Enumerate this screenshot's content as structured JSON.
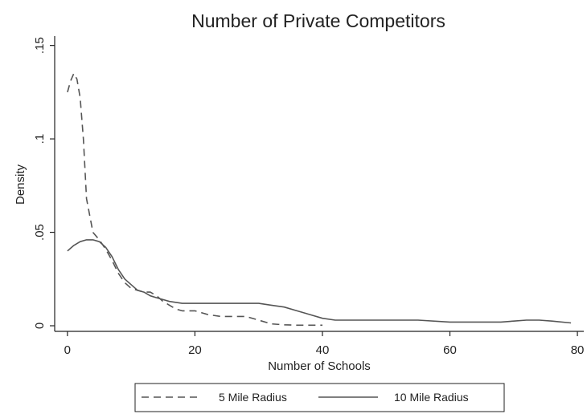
{
  "chart_data": {
    "type": "line",
    "title": "Number of Private Competitors",
    "xlabel": "Number of Schools",
    "ylabel": "Density",
    "xlim": [
      -2,
      81
    ],
    "ylim": [
      -0.003,
      0.155
    ],
    "x_ticks": [
      0,
      20,
      40,
      60,
      80
    ],
    "x_tick_labels": [
      "0",
      "20",
      "40",
      "60",
      "80"
    ],
    "y_ticks": [
      0,
      0.05,
      0.1,
      0.15
    ],
    "y_tick_labels": [
      "0",
      ".05",
      ".1",
      ".15"
    ],
    "grid": false,
    "legend_position": "bottom",
    "series": [
      {
        "name": "5 Mile Radius",
        "style": "dashed",
        "color": "#555555",
        "x": [
          0,
          0.5,
          1,
          1.5,
          2,
          2.5,
          3,
          4,
          5,
          6,
          7,
          8,
          9,
          10,
          11,
          12,
          13,
          14,
          15,
          16,
          17,
          18,
          20,
          22,
          24,
          26,
          28,
          30,
          32,
          34,
          36,
          38,
          40
        ],
        "y": [
          0.125,
          0.131,
          0.135,
          0.132,
          0.122,
          0.1,
          0.068,
          0.05,
          0.046,
          0.041,
          0.035,
          0.028,
          0.023,
          0.02,
          0.019,
          0.018,
          0.018,
          0.016,
          0.013,
          0.011,
          0.009,
          0.008,
          0.008,
          0.006,
          0.005,
          0.005,
          0.005,
          0.003,
          0.001,
          0.0005,
          0.0003,
          0.0003,
          0.0003
        ]
      },
      {
        "name": "10 Mile Radius",
        "style": "solid",
        "color": "#555555",
        "x": [
          0,
          1,
          2,
          3,
          4,
          5,
          6,
          7,
          8,
          9,
          10,
          11,
          12,
          13,
          14,
          15,
          16,
          18,
          20,
          22,
          24,
          26,
          28,
          30,
          32,
          34,
          36,
          38,
          40,
          42,
          45,
          50,
          55,
          60,
          65,
          68,
          70,
          72,
          74,
          76,
          79
        ],
        "y": [
          0.04,
          0.043,
          0.045,
          0.046,
          0.046,
          0.045,
          0.042,
          0.037,
          0.03,
          0.025,
          0.022,
          0.019,
          0.018,
          0.016,
          0.015,
          0.014,
          0.013,
          0.012,
          0.012,
          0.012,
          0.012,
          0.012,
          0.012,
          0.012,
          0.011,
          0.01,
          0.008,
          0.006,
          0.004,
          0.003,
          0.003,
          0.003,
          0.003,
          0.002,
          0.002,
          0.002,
          0.0025,
          0.003,
          0.003,
          0.0025,
          0.0015
        ]
      }
    ]
  }
}
